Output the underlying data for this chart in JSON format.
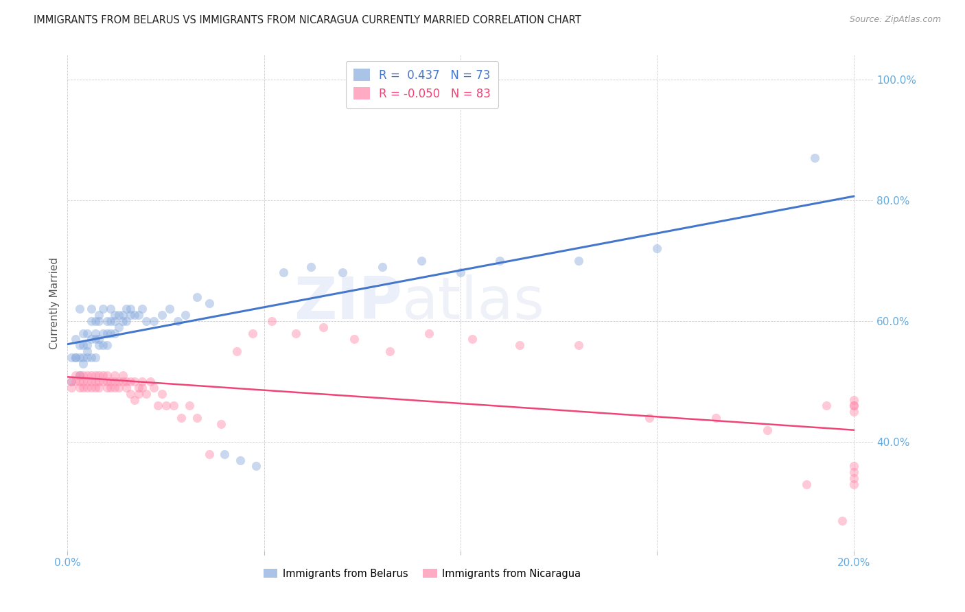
{
  "title": "IMMIGRANTS FROM BELARUS VS IMMIGRANTS FROM NICARAGUA CURRENTLY MARRIED CORRELATION CHART",
  "source": "Source: ZipAtlas.com",
  "ylabel": "Currently Married",
  "xlim": [
    0.0,
    0.205
  ],
  "ylim": [
    0.22,
    1.04
  ],
  "yticks": [
    0.4,
    0.6,
    0.8,
    1.0
  ],
  "ytick_labels": [
    "40.0%",
    "60.0%",
    "80.0%",
    "100.0%"
  ],
  "xticks": [
    0.0,
    0.05,
    0.1,
    0.15,
    0.2
  ],
  "xtick_labels": [
    "0.0%",
    "",
    "",
    "",
    "20.0%"
  ],
  "watermark_zip": "ZIP",
  "watermark_atlas": "atlas",
  "legend_R1": "R =  0.437",
  "legend_N1": "N = 73",
  "legend_R2": "R = -0.050",
  "legend_N2": "N = 83",
  "color_belarus": "#88AADD",
  "color_nicaragua": "#FF88AA",
  "color_line_belarus": "#4477CC",
  "color_line_nicaragua": "#EE4477",
  "color_ytick": "#66AADD",
  "color_xtick": "#66AADD",
  "scatter_size": 90,
  "scatter_alpha": 0.45,
  "belarus_x": [
    0.001,
    0.001,
    0.002,
    0.002,
    0.002,
    0.003,
    0.003,
    0.003,
    0.003,
    0.004,
    0.004,
    0.004,
    0.004,
    0.005,
    0.005,
    0.005,
    0.005,
    0.006,
    0.006,
    0.006,
    0.006,
    0.007,
    0.007,
    0.007,
    0.007,
    0.008,
    0.008,
    0.008,
    0.008,
    0.009,
    0.009,
    0.009,
    0.01,
    0.01,
    0.01,
    0.011,
    0.011,
    0.011,
    0.012,
    0.012,
    0.012,
    0.013,
    0.013,
    0.014,
    0.014,
    0.015,
    0.015,
    0.016,
    0.016,
    0.017,
    0.018,
    0.019,
    0.02,
    0.022,
    0.024,
    0.026,
    0.028,
    0.03,
    0.033,
    0.036,
    0.04,
    0.044,
    0.048,
    0.055,
    0.062,
    0.07,
    0.08,
    0.09,
    0.1,
    0.11,
    0.13,
    0.15,
    0.19
  ],
  "belarus_y": [
    0.54,
    0.5,
    0.54,
    0.57,
    0.54,
    0.56,
    0.62,
    0.54,
    0.51,
    0.54,
    0.56,
    0.58,
    0.53,
    0.55,
    0.58,
    0.54,
    0.56,
    0.57,
    0.6,
    0.54,
    0.62,
    0.58,
    0.6,
    0.57,
    0.54,
    0.61,
    0.57,
    0.6,
    0.56,
    0.58,
    0.62,
    0.56,
    0.6,
    0.58,
    0.56,
    0.6,
    0.62,
    0.58,
    0.61,
    0.58,
    0.6,
    0.61,
    0.59,
    0.61,
    0.6,
    0.6,
    0.62,
    0.61,
    0.62,
    0.61,
    0.61,
    0.62,
    0.6,
    0.6,
    0.61,
    0.62,
    0.6,
    0.61,
    0.64,
    0.63,
    0.38,
    0.37,
    0.36,
    0.68,
    0.69,
    0.68,
    0.69,
    0.7,
    0.68,
    0.7,
    0.7,
    0.72,
    0.87
  ],
  "nicaragua_x": [
    0.001,
    0.001,
    0.002,
    0.002,
    0.003,
    0.003,
    0.003,
    0.004,
    0.004,
    0.004,
    0.005,
    0.005,
    0.005,
    0.006,
    0.006,
    0.006,
    0.007,
    0.007,
    0.007,
    0.008,
    0.008,
    0.008,
    0.009,
    0.009,
    0.01,
    0.01,
    0.01,
    0.011,
    0.011,
    0.012,
    0.012,
    0.012,
    0.013,
    0.013,
    0.014,
    0.014,
    0.015,
    0.015,
    0.016,
    0.016,
    0.017,
    0.017,
    0.018,
    0.018,
    0.019,
    0.019,
    0.02,
    0.021,
    0.022,
    0.023,
    0.024,
    0.025,
    0.027,
    0.029,
    0.031,
    0.033,
    0.036,
    0.039,
    0.043,
    0.047,
    0.052,
    0.058,
    0.065,
    0.073,
    0.082,
    0.092,
    0.103,
    0.115,
    0.13,
    0.148,
    0.165,
    0.178,
    0.188,
    0.193,
    0.197,
    0.2,
    0.2,
    0.2,
    0.2,
    0.2,
    0.2,
    0.2,
    0.2
  ],
  "nicaragua_y": [
    0.5,
    0.49,
    0.51,
    0.5,
    0.49,
    0.51,
    0.5,
    0.49,
    0.5,
    0.51,
    0.49,
    0.51,
    0.5,
    0.5,
    0.51,
    0.49,
    0.5,
    0.51,
    0.49,
    0.5,
    0.51,
    0.49,
    0.5,
    0.51,
    0.49,
    0.5,
    0.51,
    0.49,
    0.5,
    0.49,
    0.5,
    0.51,
    0.5,
    0.49,
    0.5,
    0.51,
    0.5,
    0.49,
    0.48,
    0.5,
    0.47,
    0.5,
    0.49,
    0.48,
    0.5,
    0.49,
    0.48,
    0.5,
    0.49,
    0.46,
    0.48,
    0.46,
    0.46,
    0.44,
    0.46,
    0.44,
    0.38,
    0.43,
    0.55,
    0.58,
    0.6,
    0.58,
    0.59,
    0.57,
    0.55,
    0.58,
    0.57,
    0.56,
    0.56,
    0.44,
    0.44,
    0.42,
    0.33,
    0.46,
    0.27,
    0.47,
    0.46,
    0.45,
    0.34,
    0.46,
    0.35,
    0.33,
    0.36
  ]
}
